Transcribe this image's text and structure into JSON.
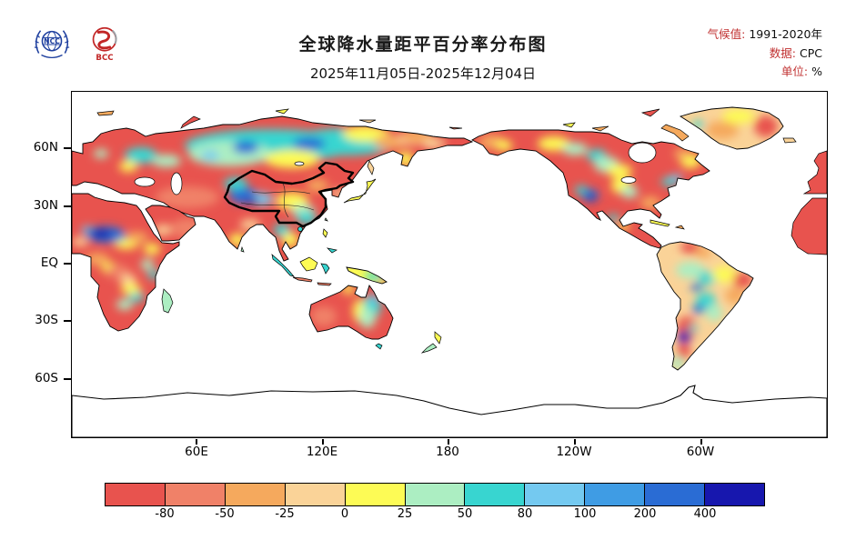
{
  "header": {
    "logos": {
      "ncc": "NCC",
      "bcc": "BCC"
    },
    "title": "全球降水量距平百分率分布图",
    "subtitle": "2025年11月05日-2025年12月04日",
    "meta": {
      "climate_label": "气候值:",
      "climate_value": "1991-2020年",
      "data_label": "数据:",
      "data_value": "CPC",
      "unit_label": "单位:",
      "unit_value": "%"
    }
  },
  "map": {
    "lat_ticks": [
      "60N",
      "30N",
      "EQ",
      "30S",
      "60S"
    ],
    "lon_ticks": [
      "60E",
      "120E",
      "180",
      "120W",
      "60W"
    ]
  },
  "colorbar": {
    "ticks": [
      "-80",
      "-50",
      "-25",
      "0",
      "25",
      "50",
      "80",
      "100",
      "200",
      "400"
    ],
    "colors": [
      "#e8534e",
      "#f08168",
      "#f5a95d",
      "#fad398",
      "#fdfb55",
      "#aceec2",
      "#38d5d0",
      "#74c9f0",
      "#3f9ce4",
      "#2a6cd4",
      "#1717ae"
    ]
  }
}
